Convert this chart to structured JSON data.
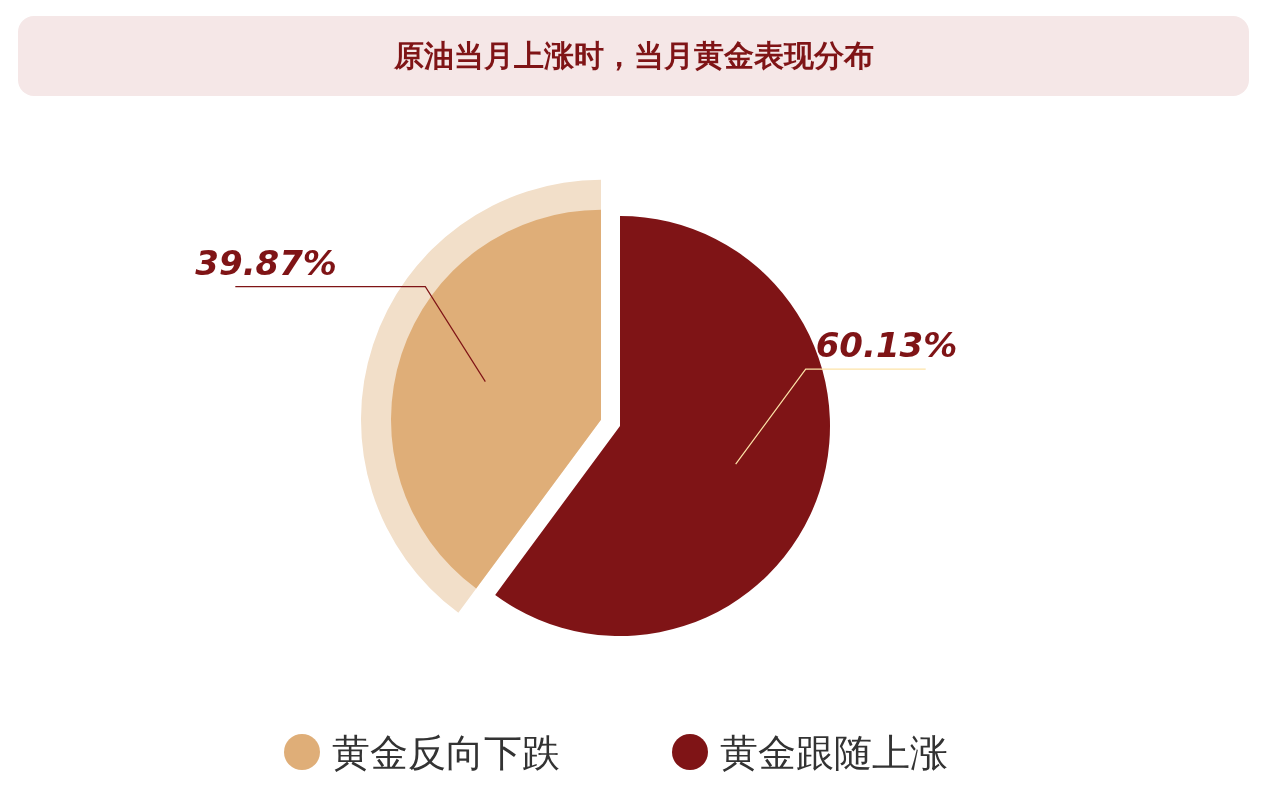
{
  "chart_data": {
    "type": "pie",
    "title": "原油当月上涨时，当月黄金表现分布",
    "categories": [
      "黄金反向下跌",
      "黄金跟随上涨"
    ],
    "values": [
      39.87,
      60.13
    ],
    "colors": [
      "#dfae78",
      "#7f1416"
    ],
    "value_labels": [
      "39.87%",
      "60.13%"
    ],
    "legend": "bottom"
  }
}
